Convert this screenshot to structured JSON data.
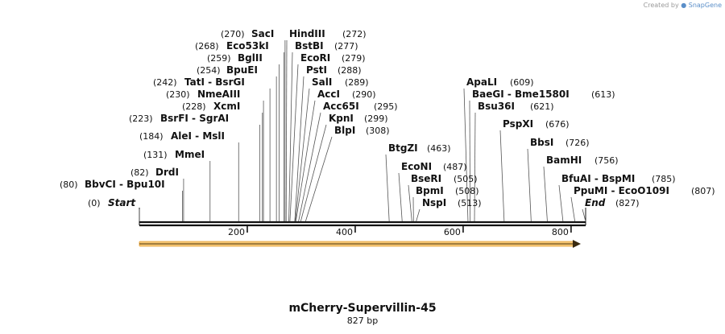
{
  "credit": {
    "prefix": "Created by",
    "brand": "SnapGene"
  },
  "title": "mCherry-Supervillin-45",
  "subtitle": "827 bp",
  "map": {
    "length": 827,
    "ticks": [
      "200",
      "400",
      "600",
      "800"
    ],
    "tick_values": [
      200,
      400,
      600,
      800
    ],
    "feature_color": "#f0a020",
    "backbone_color": "#111111"
  },
  "sites": [
    {
      "name": "Start",
      "pos_label": "(0)",
      "pos": 0,
      "italic": true,
      "name_first": false
    },
    {
      "name": "BbvCI  -  Bpu10I",
      "pos_label": "(80)",
      "pos": 80
    },
    {
      "name": "DrdI",
      "pos_label": "(82)",
      "pos": 82
    },
    {
      "name": "MmeI",
      "pos_label": "(131)",
      "pos": 131
    },
    {
      "name": "AleI  -  MslI",
      "pos_label": "(184)",
      "pos": 184
    },
    {
      "name": "BsrFI  -  SgrAI",
      "pos_label": "(223)",
      "pos": 223
    },
    {
      "name": "XcmI",
      "pos_label": "(228)",
      "pos": 228
    },
    {
      "name": "NmeAIII",
      "pos_label": "(230)",
      "pos": 230
    },
    {
      "name": "TatI  -  BsrGI",
      "pos_label": "(242)",
      "pos": 242
    },
    {
      "name": "BpuEI",
      "pos_label": "(254)",
      "pos": 254
    },
    {
      "name": "BglII",
      "pos_label": "(259)",
      "pos": 259
    },
    {
      "name": "Eco53kI",
      "pos_label": "(268)",
      "pos": 268
    },
    {
      "name": "SacI",
      "pos_label": "(270)",
      "pos": 270
    },
    {
      "name": "HindIII",
      "pos_label": "(272)",
      "pos": 272,
      "name_first": true
    },
    {
      "name": "BstBI",
      "pos_label": "(277)",
      "pos": 277,
      "name_first": true
    },
    {
      "name": "EcoRI",
      "pos_label": "(279)",
      "pos": 279,
      "name_first": true
    },
    {
      "name": "PstI",
      "pos_label": "(288)",
      "pos": 288,
      "name_first": true
    },
    {
      "name": "SalI",
      "pos_label": "(289)",
      "pos": 289,
      "name_first": true
    },
    {
      "name": "AccI",
      "pos_label": "(290)",
      "pos": 290,
      "name_first": true
    },
    {
      "name": "Acc65I",
      "pos_label": "(295)",
      "pos": 295,
      "name_first": true
    },
    {
      "name": "KpnI",
      "pos_label": "(299)",
      "pos": 299,
      "name_first": true
    },
    {
      "name": "BlpI",
      "pos_label": "(308)",
      "pos": 308,
      "name_first": true
    },
    {
      "name": "BtgZI",
      "pos_label": "(463)",
      "pos": 463,
      "name_first": true
    },
    {
      "name": "EcoNI",
      "pos_label": "(487)",
      "pos": 487,
      "name_first": true
    },
    {
      "name": "BseRI",
      "pos_label": "(505)",
      "pos": 505,
      "name_first": true
    },
    {
      "name": "BpmI",
      "pos_label": "(508)",
      "pos": 508,
      "name_first": true
    },
    {
      "name": "NspI",
      "pos_label": "(513)",
      "pos": 513,
      "name_first": true
    },
    {
      "name": "ApaLI",
      "pos_label": "(609)",
      "pos": 609,
      "name_first": true
    },
    {
      "name": "BaeGI  -  Bme1580I",
      "pos_label": "(613)",
      "pos": 613,
      "name_first": true
    },
    {
      "name": "Bsu36I",
      "pos_label": "(621)",
      "pos": 621,
      "name_first": true
    },
    {
      "name": "PspXI",
      "pos_label": "(676)",
      "pos": 676,
      "name_first": true
    },
    {
      "name": "BbsI",
      "pos_label": "(726)",
      "pos": 726,
      "name_first": true
    },
    {
      "name": "BamHI",
      "pos_label": "(756)",
      "pos": 756,
      "name_first": true
    },
    {
      "name": "BfuAI  -  BspMI",
      "pos_label": "(785)",
      "pos": 785,
      "name_first": true
    },
    {
      "name": "PpuMI  -  EcoO109I",
      "pos_label": "(807)",
      "pos": 807,
      "name_first": true
    },
    {
      "name": "End",
      "pos_label": "(827)",
      "pos": 827,
      "italic": true,
      "name_first": true
    }
  ]
}
